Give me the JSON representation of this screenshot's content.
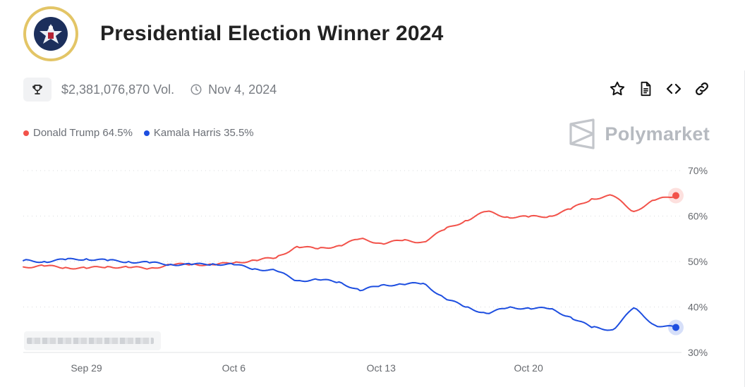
{
  "header": {
    "title": "Presidential Election Winner 2024",
    "seal_icon": "presidential-seal-icon"
  },
  "meta": {
    "volume": "$2,381,076,870 Vol.",
    "date": "Nov 4, 2024"
  },
  "actions": [
    {
      "name": "star-button",
      "icon": "star-icon"
    },
    {
      "name": "document-button",
      "icon": "document-icon"
    },
    {
      "name": "embed-button",
      "icon": "code-icon"
    },
    {
      "name": "link-button",
      "icon": "link-icon"
    }
  ],
  "brand": {
    "name": "Polymarket"
  },
  "colors": {
    "trump": "#f2524a",
    "harris": "#1d4ee0",
    "grid": "#d9dbde"
  },
  "chart_data": {
    "type": "line",
    "x_ticks": [
      "Sep 29",
      "Oct 6",
      "Oct 13",
      "Oct 20"
    ],
    "y_ticks": [
      "70%",
      "60%",
      "50%",
      "40%",
      "30%"
    ],
    "ylim": [
      30,
      70
    ],
    "grid": true,
    "legend_position": "top-left",
    "legend": [
      "Donald Trump 64.5%",
      "Kamala Harris 35.5%"
    ],
    "x_day_labels": [
      "Sep 29",
      "Oct 6",
      "Oct 13",
      "Oct 20"
    ],
    "series": [
      {
        "name": "Donald Trump",
        "color": "#f2524a",
        "points": [
          [
            "Sep 26",
            48.8
          ],
          [
            "Sep 27",
            49.0
          ],
          [
            "Sep 28",
            48.7
          ],
          [
            "Sep 29",
            48.5
          ],
          [
            "Sep 30",
            48.9
          ],
          [
            "Oct 1",
            48.7
          ],
          [
            "Oct 2",
            48.5
          ],
          [
            "Oct 3",
            49.3
          ],
          [
            "Oct 4",
            49.4
          ],
          [
            "Oct 5",
            49.3
          ],
          [
            "Oct 6",
            49.7
          ],
          [
            "Oct 7",
            50.3
          ],
          [
            "Oct 8",
            50.8
          ],
          [
            "Oct 9",
            53.3
          ],
          [
            "Oct 10",
            52.8
          ],
          [
            "Oct 11",
            53.5
          ],
          [
            "Oct 12",
            55.0
          ],
          [
            "Oct 13",
            54.0
          ],
          [
            "Oct 14",
            54.6
          ],
          [
            "Oct 15",
            54.3
          ],
          [
            "Oct 16",
            57.0
          ],
          [
            "Oct 17",
            59.0
          ],
          [
            "Oct 18",
            61.0
          ],
          [
            "Oct 19",
            59.8
          ],
          [
            "Oct 20",
            59.8
          ],
          [
            "Oct 21",
            60.0
          ],
          [
            "Oct 22",
            61.5
          ],
          [
            "Oct 23",
            63.8
          ],
          [
            "Oct 24",
            64.5
          ],
          [
            "Oct 25",
            61.0
          ],
          [
            "Oct 26",
            63.5
          ],
          [
            "Oct 27",
            64.5
          ]
        ]
      },
      {
        "name": "Kamala Harris",
        "color": "#1d4ee0",
        "points": [
          [
            "Sep 26",
            50.2
          ],
          [
            "Sep 27",
            50.0
          ],
          [
            "Sep 28",
            50.4
          ],
          [
            "Sep 29",
            50.6
          ],
          [
            "Sep 30",
            50.2
          ],
          [
            "Oct 1",
            50.0
          ],
          [
            "Oct 2",
            49.7
          ],
          [
            "Oct 3",
            49.4
          ],
          [
            "Oct 4",
            49.3
          ],
          [
            "Oct 5",
            49.5
          ],
          [
            "Oct 6",
            49.3
          ],
          [
            "Oct 7",
            48.4
          ],
          [
            "Oct 8",
            48.0
          ],
          [
            "Oct 9",
            45.8
          ],
          [
            "Oct 10",
            46.0
          ],
          [
            "Oct 11",
            45.5
          ],
          [
            "Oct 12",
            43.6
          ],
          [
            "Oct 13",
            44.8
          ],
          [
            "Oct 14",
            45.0
          ],
          [
            "Oct 15",
            45.2
          ],
          [
            "Oct 16",
            42.0
          ],
          [
            "Oct 17",
            40.0
          ],
          [
            "Oct 18",
            38.6
          ],
          [
            "Oct 19",
            39.8
          ],
          [
            "Oct 20",
            39.8
          ],
          [
            "Oct 21",
            39.6
          ],
          [
            "Oct 22",
            37.8
          ],
          [
            "Oct 23",
            35.5
          ],
          [
            "Oct 24",
            35.0
          ],
          [
            "Oct 25",
            39.8
          ],
          [
            "Oct 26",
            36.0
          ],
          [
            "Oct 27",
            35.5
          ]
        ]
      }
    ]
  }
}
